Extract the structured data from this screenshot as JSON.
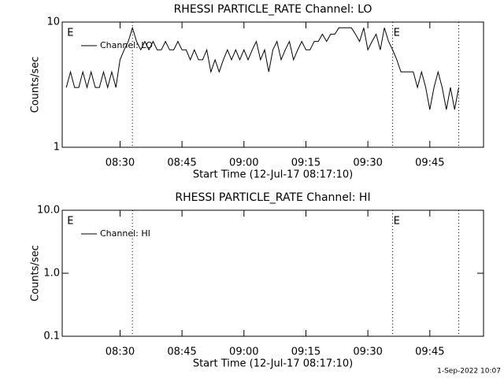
{
  "chart_data": [
    {
      "type": "line",
      "title": "RHESSI PARTICLE_RATE Channel: LO",
      "xlabel": "Start Time (12-Jul-17 08:17:10)",
      "ylabel": "Counts/sec",
      "x": [
        "08:17",
        "08:18",
        "08:19",
        "08:20",
        "08:21",
        "08:22",
        "08:23",
        "08:24",
        "08:25",
        "08:26",
        "08:27",
        "08:28",
        "08:29",
        "08:30",
        "08:31",
        "08:32",
        "08:33",
        "08:34",
        "08:35",
        "08:36",
        "08:37",
        "08:38",
        "08:39",
        "08:40",
        "08:41",
        "08:42",
        "08:43",
        "08:44",
        "08:45",
        "08:46",
        "08:47",
        "08:48",
        "08:49",
        "08:50",
        "08:51",
        "08:52",
        "08:53",
        "08:54",
        "08:55",
        "08:56",
        "08:57",
        "08:58",
        "08:59",
        "09:00",
        "09:01",
        "09:02",
        "09:03",
        "09:04",
        "09:05",
        "09:06",
        "09:07",
        "09:08",
        "09:09",
        "09:10",
        "09:11",
        "09:12",
        "09:13",
        "09:14",
        "09:15",
        "09:16",
        "09:17",
        "09:18",
        "09:19",
        "09:20",
        "09:21",
        "09:22",
        "09:23",
        "09:24",
        "09:25",
        "09:26",
        "09:27",
        "09:28",
        "09:29",
        "09:30",
        "09:31",
        "09:32",
        "09:33",
        "09:34",
        "09:35",
        "09:36",
        "09:37",
        "09:38",
        "09:39",
        "09:40",
        "09:41",
        "09:42",
        "09:43",
        "09:44",
        "09:45",
        "09:46",
        "09:47",
        "09:48",
        "09:49",
        "09:50",
        "09:51",
        "09:52"
      ],
      "series": [
        {
          "name": "Channel: LO",
          "color": "#000000",
          "values": [
            3,
            4,
            3,
            3,
            4,
            3,
            4,
            3,
            3,
            4,
            3,
            4,
            3,
            5,
            6,
            7,
            9,
            7,
            6,
            7,
            6,
            7,
            6,
            6,
            7,
            6,
            6,
            7,
            6,
            6,
            5,
            6,
            5,
            5,
            6,
            4,
            5,
            4,
            5,
            6,
            5,
            6,
            5,
            6,
            5,
            6,
            7,
            5,
            6,
            4,
            6,
            7,
            5,
            6,
            7,
            5,
            6,
            7,
            6,
            6,
            7,
            7,
            8,
            7,
            8,
            8,
            9,
            9,
            9,
            9,
            8,
            7,
            9,
            6,
            7,
            8,
            6,
            9,
            7,
            6,
            5,
            4,
            4,
            4,
            4,
            3,
            4,
            3,
            2,
            3,
            4,
            3,
            2,
            3,
            2,
            3
          ]
        }
      ],
      "xlim": [
        "08:16",
        "09:58"
      ],
      "xticks": [
        "08:30",
        "08:45",
        "09:00",
        "09:15",
        "09:30",
        "09:45"
      ],
      "ylim": [
        1,
        10
      ],
      "yticks": [
        1,
        10
      ],
      "yscale": "log",
      "markers": [
        "08:33",
        "09:36",
        "09:52"
      ],
      "annotations": [
        {
          "text": "E",
          "x": "08:17"
        },
        {
          "text": "E",
          "x": "09:36"
        }
      ],
      "legend": "upper left"
    },
    {
      "type": "line",
      "title": "RHESSI PARTICLE_RATE Channel: HI",
      "xlabel": "Start Time (12-Jul-17 08:17:10)",
      "ylabel": "Counts/sec",
      "x": [],
      "series": [
        {
          "name": "Channel: HI",
          "color": "#000000",
          "values": []
        }
      ],
      "xlim": [
        "08:16",
        "09:58"
      ],
      "xticks": [
        "08:30",
        "08:45",
        "09:00",
        "09:15",
        "09:30",
        "09:45"
      ],
      "ylim": [
        0.1,
        10
      ],
      "yticks": [
        0.1,
        {
          "value": 1,
          "label": "1.0"
        },
        {
          "value": 10,
          "label": "10.0"
        }
      ],
      "yscale": "log",
      "markers": [
        "08:33",
        "09:36",
        "09:52"
      ],
      "annotations": [
        {
          "text": "E",
          "x": "08:17"
        },
        {
          "text": "E",
          "x": "09:36"
        }
      ],
      "legend": "upper left"
    }
  ],
  "footer": "1-Sep-2022 10:07"
}
